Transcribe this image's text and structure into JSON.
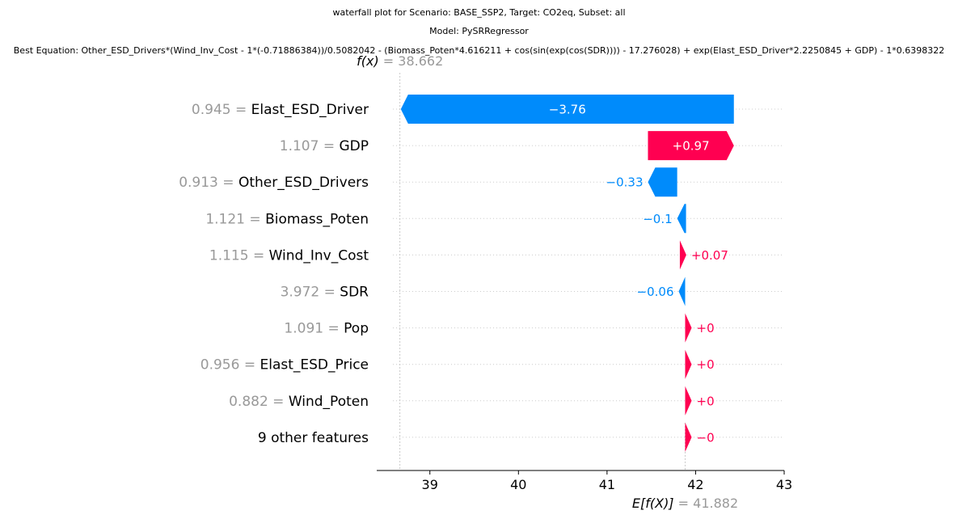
{
  "titles": {
    "line1": "waterfall plot for Scenario: BASE_SSP2, Target: CO2eq, Subset: all",
    "line2": "Model: PySRRegressor",
    "line3": "Best Equation: Other_ESD_Drivers*(Wind_Inv_Cost - 1*(-0.71886384))/0.5082042 - (Biomass_Poten*4.616211 + cos(sin(exp(cos(SDR)))) - 17.276028) + exp(Elast_ESD_Driver*2.2250845 + GDP) - 1*0.6398322"
  },
  "chart_data": {
    "type": "waterfall",
    "fx": {
      "label": "f(x)",
      "value_text": "= 38.662",
      "value": 38.662
    },
    "efx": {
      "label": "E[f(X)]",
      "value_text": "= 41.882",
      "value": 41.882
    },
    "xlim": [
      38.4,
      43.0
    ],
    "xticks": [
      "39",
      "40",
      "41",
      "42",
      "43"
    ],
    "xtick_values": [
      39,
      40,
      41,
      42,
      43
    ],
    "grid": "dotted horizontal row lines",
    "colors": {
      "positive": "#ff0051",
      "negative": "#008bfb",
      "feature_value": "#999999",
      "label": "#000000"
    },
    "rows": [
      {
        "feature_value": "0.945",
        "eq": "=",
        "feature": "Elast_ESD_Driver",
        "shap": -3.76,
        "label": "−3.76",
        "label_inside": true
      },
      {
        "feature_value": "1.107",
        "eq": "=",
        "feature": "GDP",
        "shap": 0.97,
        "label": "+0.97",
        "label_inside": true
      },
      {
        "feature_value": "0.913",
        "eq": "=",
        "feature": "Other_ESD_Drivers",
        "shap": -0.33,
        "label": "−0.33",
        "label_inside": false
      },
      {
        "feature_value": "1.121",
        "eq": "=",
        "feature": "Biomass_Poten",
        "shap": -0.1,
        "label": "−0.1",
        "label_inside": false
      },
      {
        "feature_value": "1.115",
        "eq": "=",
        "feature": "Wind_Inv_Cost",
        "shap": 0.07,
        "label": "+0.07",
        "label_inside": false
      },
      {
        "feature_value": "3.972",
        "eq": "=",
        "feature": "SDR",
        "shap": -0.06,
        "label": "−0.06",
        "label_inside": false
      },
      {
        "feature_value": "1.091",
        "eq": "=",
        "feature": "Pop",
        "shap": 0.0,
        "label": "+0",
        "label_inside": false
      },
      {
        "feature_value": "0.956",
        "eq": "=",
        "feature": "Elast_ESD_Price",
        "shap": 0.0,
        "label": "+0",
        "label_inside": false
      },
      {
        "feature_value": "0.882",
        "eq": "=",
        "feature": "Wind_Poten",
        "shap": 0.0,
        "label": "+0",
        "label_inside": false
      },
      {
        "feature_value": "",
        "eq": "",
        "feature": "9 other features",
        "shap": -0.0,
        "label": "−0",
        "label_inside": false
      }
    ]
  }
}
